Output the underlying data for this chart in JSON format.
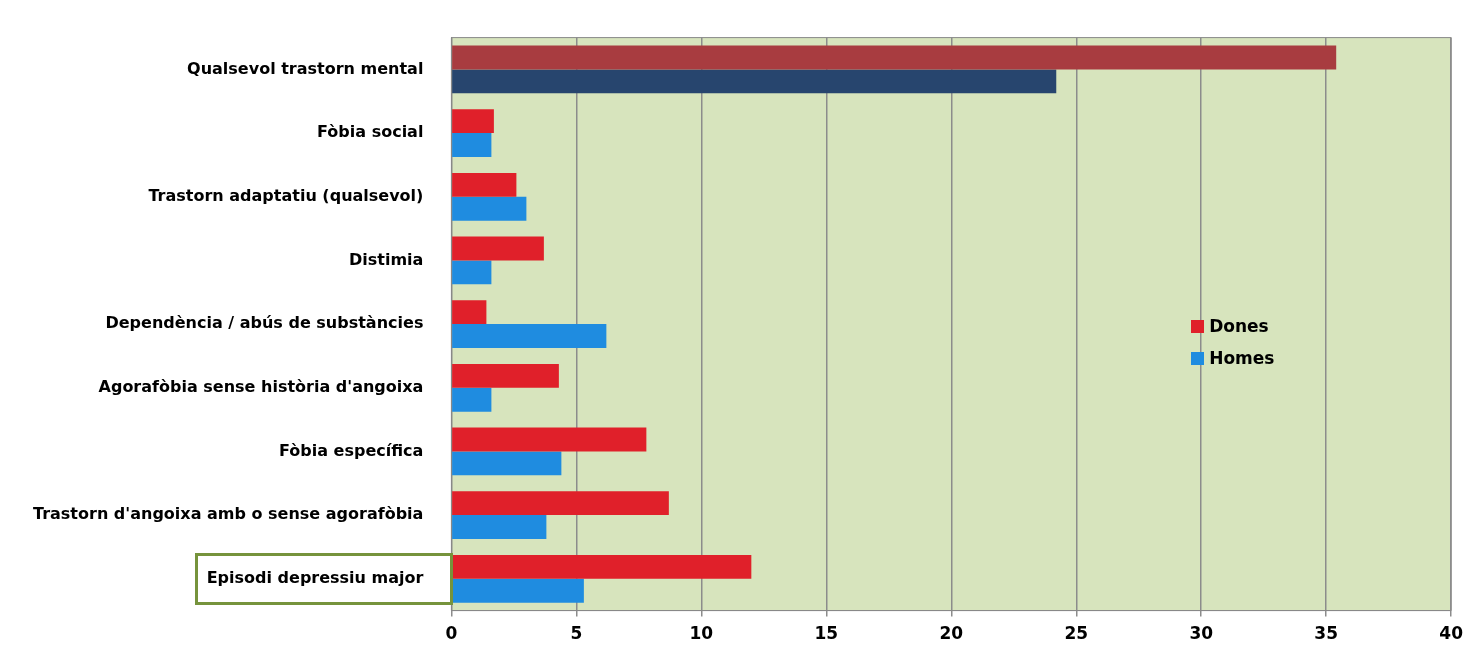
{
  "chart_data": {
    "type": "bar",
    "orientation": "horizontal",
    "categories": [
      "Qualsevol trastorn mental",
      "Fòbia social",
      "Trastorn adaptatiu (qualsevol)",
      "Distimia",
      "Dependència / abús de substàncies",
      "Agorafòbia sense història d'angoixa",
      "Fòbia específica",
      "Trastorn d'angoixa amb o sense agorafòbia",
      "Episodi depressiu major"
    ],
    "series": [
      {
        "name": "Dones",
        "color": "#e0202a",
        "colors": [
          "#a83c40",
          "#e0202a",
          "#e0202a",
          "#e0202a",
          "#e0202a",
          "#e0202a",
          "#e0202a",
          "#e0202a",
          "#e0202a"
        ],
        "values": [
          35.4,
          1.7,
          2.6,
          3.7,
          1.4,
          4.3,
          7.8,
          8.7,
          12.0
        ]
      },
      {
        "name": "Homes",
        "color": "#1f8ce0",
        "colors": [
          "#27456e",
          "#1f8ce0",
          "#1f8ce0",
          "#1f8ce0",
          "#1f8ce0",
          "#1f8ce0",
          "#1f8ce0",
          "#1f8ce0",
          "#1f8ce0"
        ],
        "values": [
          24.2,
          1.6,
          3.0,
          1.6,
          6.2,
          1.6,
          4.4,
          3.8,
          5.3
        ]
      }
    ],
    "xlim": [
      0,
      40
    ],
    "xticks": [
      0,
      5,
      10,
      15,
      20,
      25,
      30,
      35,
      40
    ],
    "grid": "x",
    "legend": "right"
  }
}
